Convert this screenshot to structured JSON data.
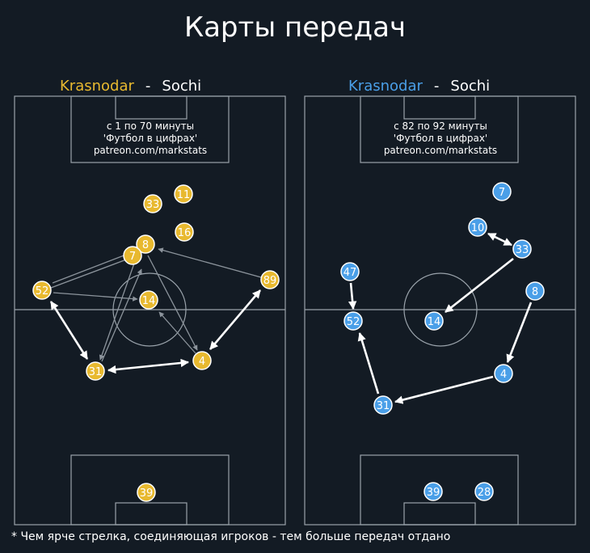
{
  "title": "Карты передач",
  "footnote": "* Чем ярче стрелка, соединяющая игроков - тем больше передач отдано",
  "colors": {
    "background": "#131b24",
    "pitch_lines": "#9aa3ab",
    "team_left": "#e8b92f",
    "team_right": "#4a9fe8",
    "arrow_strong": "#ffffff",
    "arrow_weak": "#8c949c"
  },
  "pitches": [
    {
      "id": "left",
      "home_team": "Krasnodar",
      "separator": "-",
      "away_team": "Sochi",
      "info": [
        "с 1 по 70 минуты",
        "'Футбол в цифрах'",
        "patreon.com/markstats"
      ],
      "players": [
        {
          "n": "11"
        },
        {
          "n": "33"
        },
        {
          "n": "16"
        },
        {
          "n": "8"
        },
        {
          "n": "7"
        },
        {
          "n": "89"
        },
        {
          "n": "52"
        },
        {
          "n": "14"
        },
        {
          "n": "4"
        },
        {
          "n": "31"
        },
        {
          "n": "39"
        }
      ]
    },
    {
      "id": "right",
      "home_team": "Krasnodar",
      "separator": "-",
      "away_team": "Sochi",
      "info": [
        "с 82 по 92 минуты",
        "'Футбол в цифрах'",
        "patreon.com/markstats"
      ],
      "players": [
        {
          "n": "7"
        },
        {
          "n": "10"
        },
        {
          "n": "33"
        },
        {
          "n": "47"
        },
        {
          "n": "8"
        },
        {
          "n": "52"
        },
        {
          "n": "14"
        },
        {
          "n": "4"
        },
        {
          "n": "31"
        },
        {
          "n": "39"
        },
        {
          "n": "28"
        }
      ]
    }
  ]
}
